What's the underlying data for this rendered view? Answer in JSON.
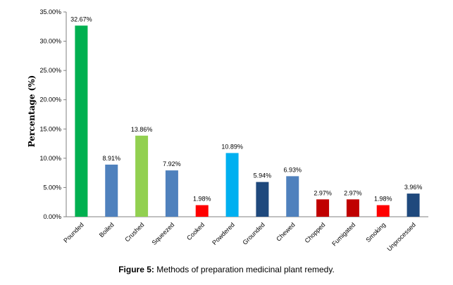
{
  "chart_data": {
    "type": "bar",
    "categories": [
      "Pounded",
      "Boiled",
      "Crushed",
      "Squeezed",
      "Cooked",
      "Powdered",
      "Grounded",
      "Chewed",
      "Chopped",
      "Fumigated",
      "Smoking",
      "Unprocessed"
    ],
    "values": [
      32.67,
      8.91,
      13.86,
      7.92,
      1.98,
      10.89,
      5.94,
      6.93,
      2.97,
      2.97,
      1.98,
      3.96
    ],
    "data_labels": [
      "32.67%",
      "8.91%",
      "13.86%",
      "7.92%",
      "1.98%",
      "10.89%",
      "5.94%",
      "6.93%",
      "2.97%",
      "2.97%",
      "1.98%",
      "3.96%"
    ],
    "colors": [
      "#00b050",
      "#4f81bd",
      "#92d050",
      "#4f81bd",
      "#ff0000",
      "#00b0f0",
      "#1f497d",
      "#4f81bd",
      "#c00000",
      "#c00000",
      "#ff0000",
      "#1f497d"
    ],
    "ylabel": "Percentage (%)",
    "xlabel": "",
    "ylim": [
      0,
      35
    ],
    "yticks": [
      0,
      5,
      10,
      15,
      20,
      25,
      30,
      35
    ],
    "ytick_labels": [
      "0.00%",
      "5.00%",
      "10.00%",
      "15.00%",
      "20.00%",
      "25.00%",
      "30.00%",
      "35.00%"
    ],
    "grid": false,
    "legend": "none"
  },
  "caption": {
    "figure_label": "Figure 5:",
    "text": " Methods of preparation medicinal plant remedy."
  }
}
